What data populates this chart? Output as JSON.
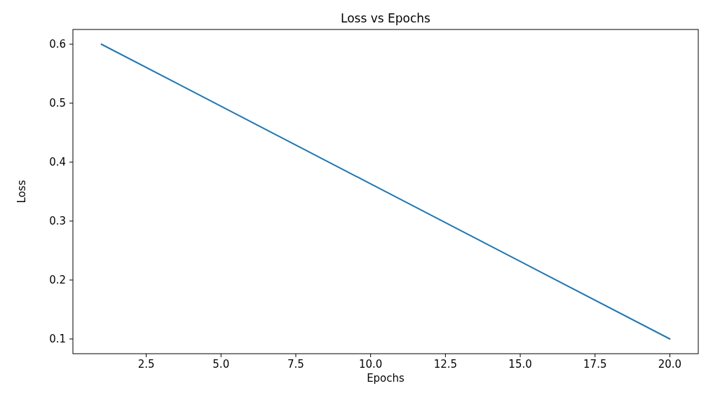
{
  "chart_data": {
    "type": "line",
    "title": "Loss vs Epochs",
    "xlabel": "Epochs",
    "ylabel": "Loss",
    "x": [
      1,
      20
    ],
    "series": [
      {
        "color": "#1f77b4",
        "values": [
          0.6,
          0.1
        ]
      }
    ],
    "xlim": [
      0.05,
      20.95
    ],
    "xticks": [
      {
        "value": 2.5,
        "label": "2.5"
      },
      {
        "value": 5,
        "label": "5.0"
      },
      {
        "value": 7.5,
        "label": "7.5"
      },
      {
        "value": 10,
        "label": "10.0"
      },
      {
        "value": 12.5,
        "label": "12.5"
      },
      {
        "value": 15,
        "label": "15.0"
      },
      {
        "value": 17.5,
        "label": "17.5"
      },
      {
        "value": 20,
        "label": "20.0"
      }
    ],
    "ylim": [
      0.075,
      0.625
    ],
    "yticks": [
      0.1,
      0.2,
      0.3,
      0.4,
      0.5,
      0.6
    ],
    "grid": false,
    "marker": "none",
    "line_style": "solid"
  }
}
